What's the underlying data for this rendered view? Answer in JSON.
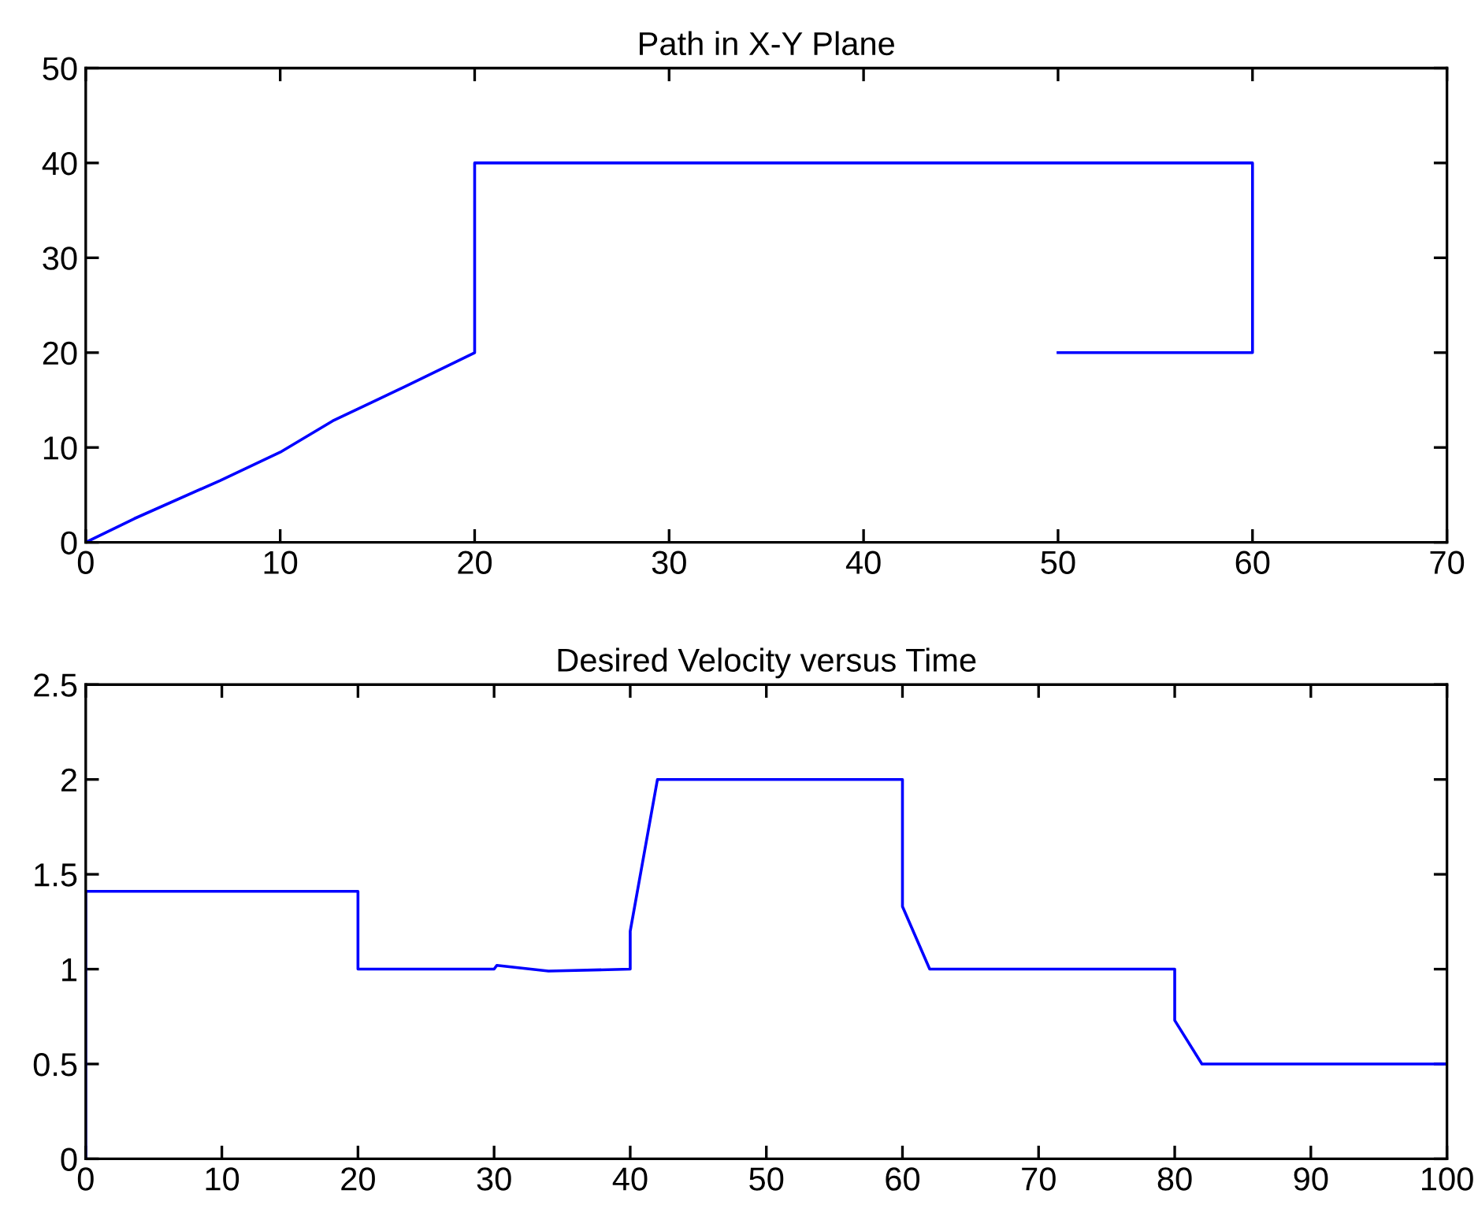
{
  "chart_data": [
    {
      "type": "line",
      "title": "Path in X-Y Plane",
      "xlim": [
        0,
        70
      ],
      "ylim": [
        0,
        50
      ],
      "xticks": [
        0,
        10,
        20,
        30,
        40,
        50,
        60,
        70
      ],
      "yticks": [
        0,
        10,
        20,
        30,
        40,
        50
      ],
      "grid": false,
      "marker": "none",
      "line_style": "solid",
      "series": [
        {
          "color": "#0000ff",
          "x": [
            0,
            2.5,
            6.9,
            10,
            12.7,
            16.5,
            19,
            20,
            20,
            60,
            60,
            50
          ],
          "values": [
            0,
            2.5,
            6.5,
            9.5,
            12.8,
            16.5,
            19,
            20,
            40,
            40,
            20,
            20
          ]
        }
      ]
    },
    {
      "type": "line",
      "title": "Desired Velocity versus Time",
      "xlim": [
        0,
        100
      ],
      "ylim": [
        0,
        2.5
      ],
      "xticks": [
        0,
        10,
        20,
        30,
        40,
        50,
        60,
        70,
        80,
        90,
        100
      ],
      "yticks": [
        0,
        0.5,
        1,
        1.5,
        2,
        2.5
      ],
      "grid": false,
      "marker": "none",
      "line_style": "solid",
      "series": [
        {
          "color": "#0000ff",
          "x": [
            0,
            0,
            20,
            20,
            30,
            30.2,
            34,
            40,
            40,
            42,
            60,
            60,
            62,
            80,
            80,
            82,
            100
          ],
          "values": [
            0,
            1.41,
            1.41,
            1,
            1,
            1.02,
            0.99,
            1,
            1.2,
            2,
            2,
            1.33,
            1,
            1,
            0.73,
            0.5,
            0.5
          ]
        }
      ]
    }
  ]
}
